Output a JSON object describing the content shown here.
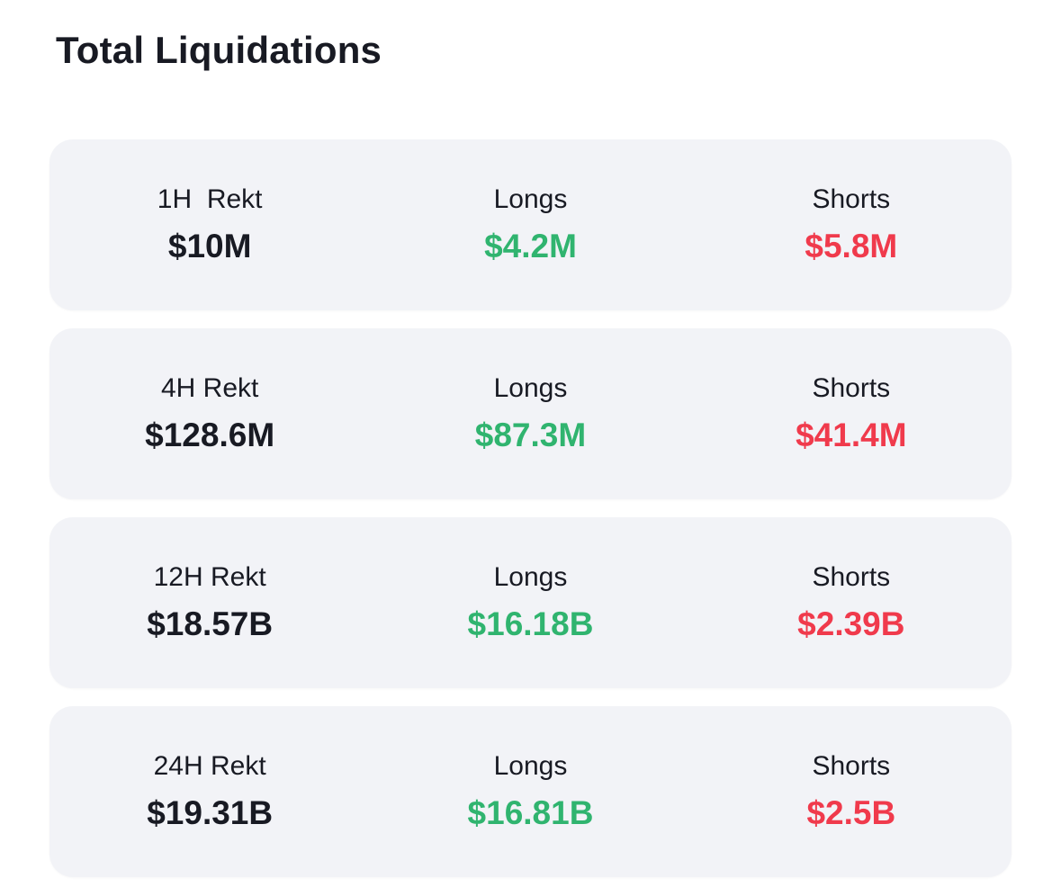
{
  "page": {
    "title": "Total Liquidations"
  },
  "colors": {
    "text_dark": "#181a23",
    "longs_green": "#30b46f",
    "shorts_red": "#f03a4c",
    "card_bg": "#f2f3f7",
    "page_bg": "#ffffff"
  },
  "cards": [
    {
      "period_label": "1H  Rekt",
      "total_value": "$10M",
      "longs_label": "Longs",
      "longs_value": "$4.2M",
      "shorts_label": "Shorts",
      "shorts_value": "$5.8M"
    },
    {
      "period_label": "4H Rekt",
      "total_value": "$128.6M",
      "longs_label": "Longs",
      "longs_value": "$87.3M",
      "shorts_label": "Shorts",
      "shorts_value": "$41.4M"
    },
    {
      "period_label": "12H Rekt",
      "total_value": "$18.57B",
      "longs_label": "Longs",
      "longs_value": "$16.18B",
      "shorts_label": "Shorts",
      "shorts_value": "$2.39B"
    },
    {
      "period_label": "24H Rekt",
      "total_value": "$19.31B",
      "longs_label": "Longs",
      "longs_value": "$16.81B",
      "shorts_label": "Shorts",
      "shorts_value": "$2.5B"
    }
  ]
}
